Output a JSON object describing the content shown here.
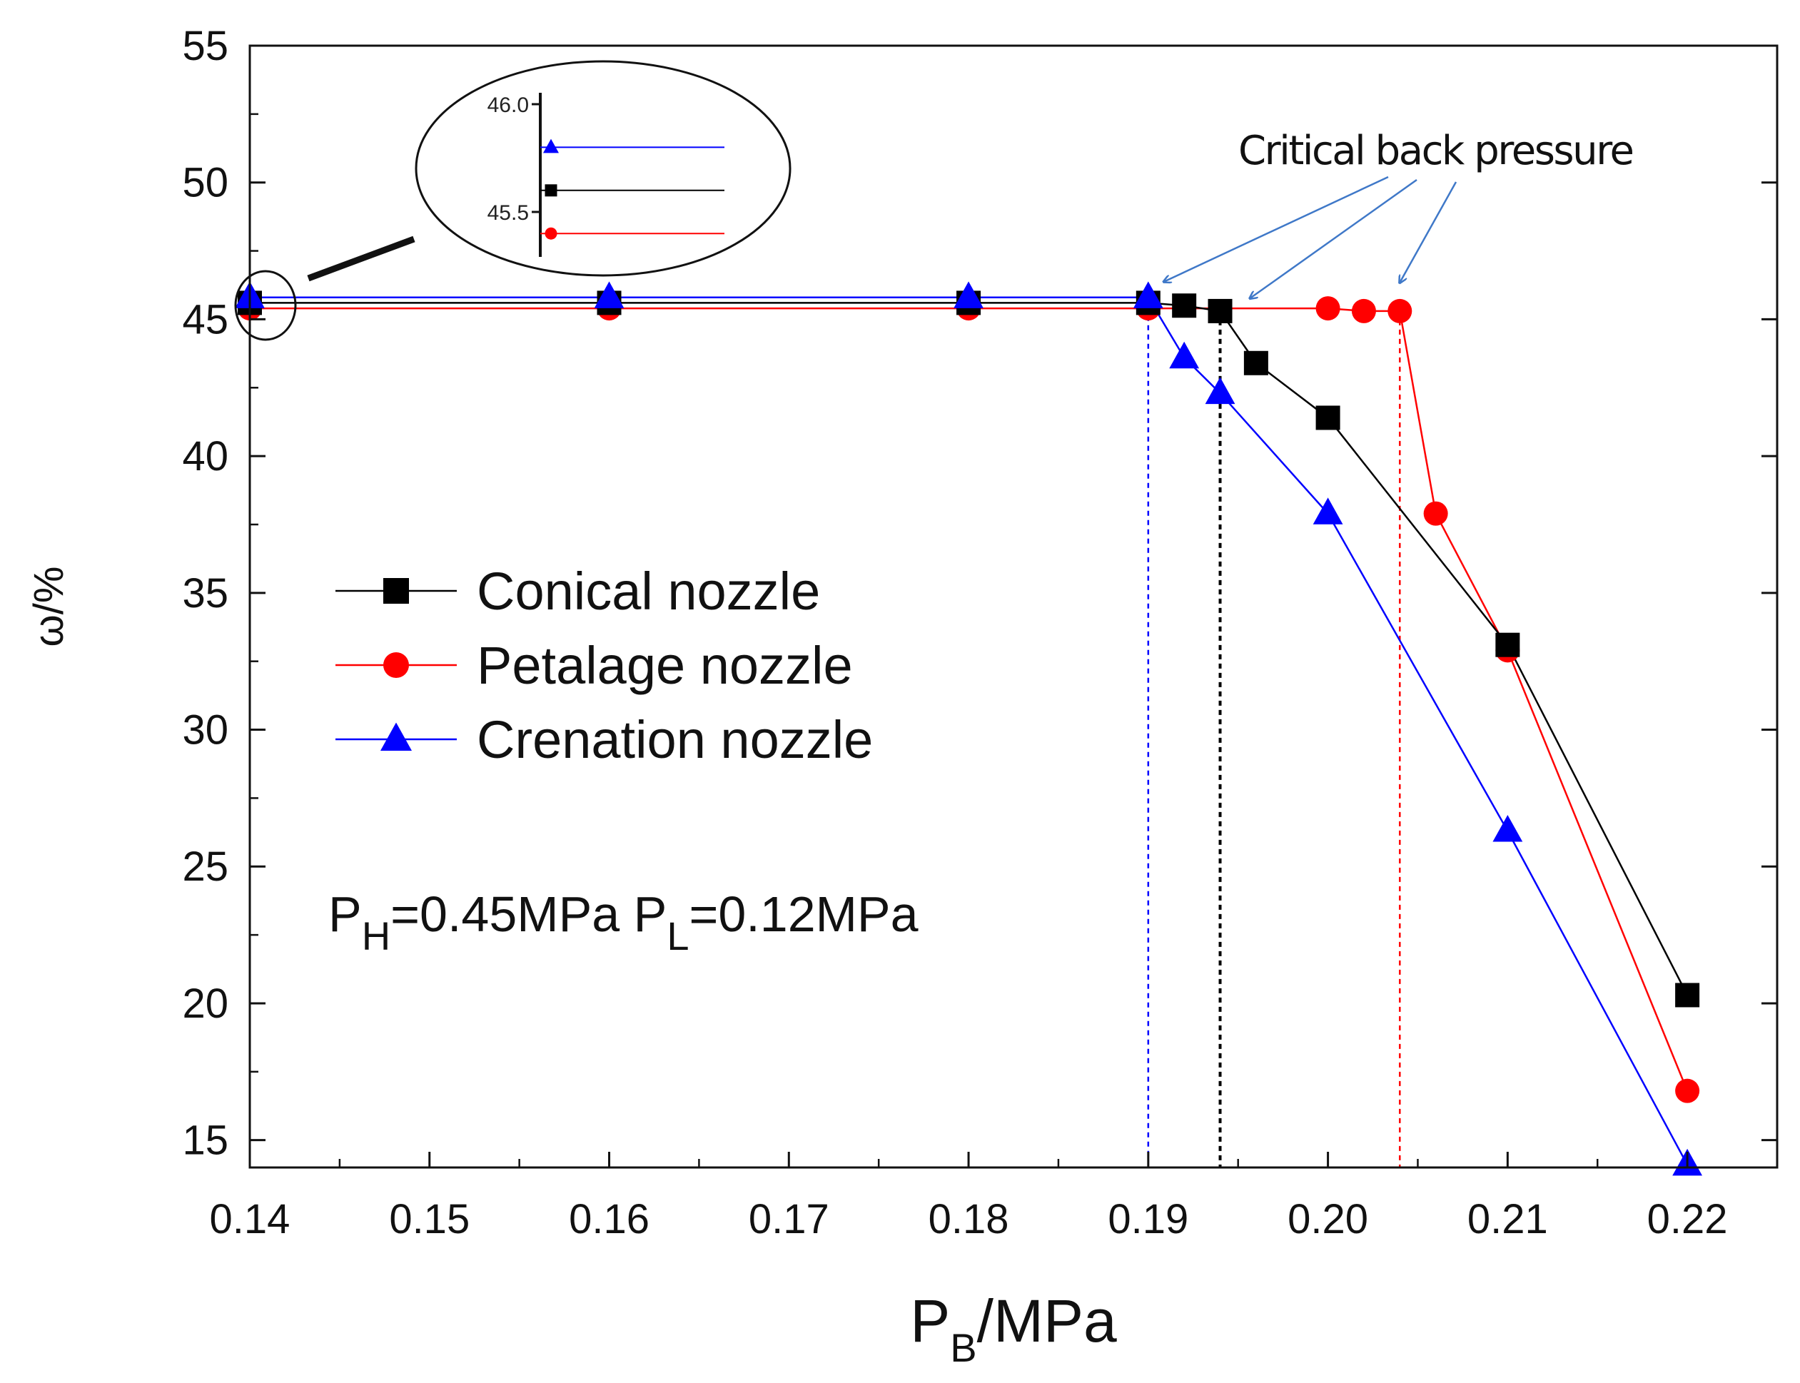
{
  "chart_data": {
    "type": "line",
    "title": "",
    "xlabel": "P",
    "xlabel_sub": "B",
    "xlabel_suffix": "/MPa",
    "ylabel": "ω/%",
    "xlim": [
      0.14,
      0.225
    ],
    "ylim": [
      14,
      55
    ],
    "xticks": [
      0.14,
      0.15,
      0.16,
      0.17,
      0.18,
      0.19,
      0.2,
      0.21,
      0.22
    ],
    "xtick_labels": [
      "0.14",
      "0.15",
      "0.16",
      "0.17",
      "0.18",
      "0.19",
      "0.20",
      "0.21",
      "0.22"
    ],
    "yticks": [
      15,
      20,
      25,
      30,
      35,
      40,
      45,
      50,
      55
    ],
    "ytick_labels": [
      "15",
      "20",
      "25",
      "30",
      "35",
      "40",
      "45",
      "50",
      "55"
    ],
    "grid": false,
    "series": [
      {
        "name": "Conical nozzle",
        "color": "#000000",
        "marker": "square",
        "x": [
          0.14,
          0.16,
          0.18,
          0.19,
          0.192,
          0.194,
          0.196,
          0.2,
          0.21,
          0.22
        ],
        "y": [
          45.6,
          45.6,
          45.6,
          45.6,
          45.5,
          45.3,
          43.4,
          41.4,
          33.1,
          20.3
        ]
      },
      {
        "name": "Petalage nozzle",
        "color": "#ff0000",
        "marker": "circle",
        "x": [
          0.14,
          0.16,
          0.18,
          0.19,
          0.2,
          0.202,
          0.204,
          0.206,
          0.21,
          0.22
        ],
        "y": [
          45.4,
          45.4,
          45.4,
          45.4,
          45.4,
          45.3,
          45.3,
          37.9,
          32.9,
          16.8
        ]
      },
      {
        "name": "Crenation nozzle",
        "color": "#0000ff",
        "marker": "triangle",
        "x": [
          0.14,
          0.16,
          0.18,
          0.19,
          0.192,
          0.194,
          0.2,
          0.21,
          0.22
        ],
        "y": [
          45.8,
          45.8,
          45.8,
          45.8,
          43.6,
          42.3,
          37.9,
          26.3,
          14.1
        ]
      }
    ],
    "critical_lines": [
      {
        "x": 0.19,
        "color": "#0000ff"
      },
      {
        "x": 0.194,
        "color": "#000000"
      },
      {
        "x": 0.204,
        "color": "#ff0000"
      }
    ],
    "annotations": {
      "callout_text": "Critical back pressure",
      "condition_parts": [
        "P",
        "H",
        "=0.45MPa P",
        "L",
        "=0.12MPa"
      ]
    },
    "legend_position": "center-left",
    "inset": {
      "tick_labels": [
        "46.0",
        "45.5"
      ],
      "lines": [
        {
          "series": "Crenation nozzle",
          "value": 45.8
        },
        {
          "series": "Conical nozzle",
          "value": 45.6
        },
        {
          "series": "Petalage nozzle",
          "value": 45.4
        }
      ]
    }
  }
}
